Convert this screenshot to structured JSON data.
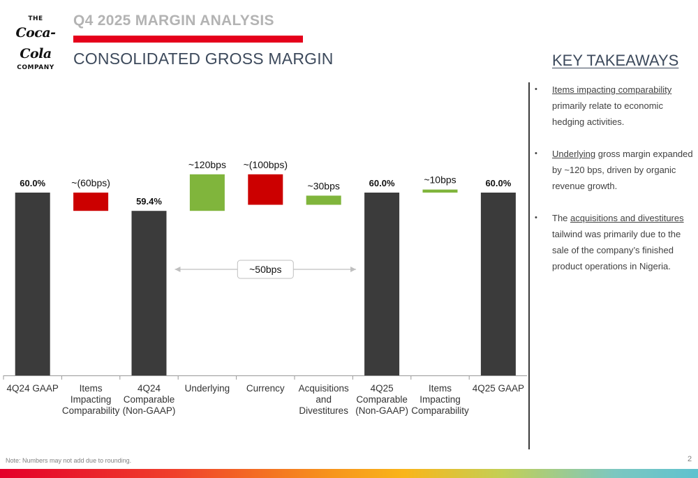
{
  "logo": {
    "top": "THE",
    "script": "Coca-Cola",
    "bottom": "COMPANY"
  },
  "header": {
    "kicker": "Q4 2025 MARGIN ANALYSIS",
    "title": "CONSOLIDATED GROSS MARGIN"
  },
  "colors": {
    "base": "#3b3b3b",
    "increase": "#80b53c",
    "decrease": "#cc0000",
    "brand_red": "#e5001b"
  },
  "chart_data": {
    "type": "waterfall",
    "title": "Consolidated Gross Margin",
    "unit": "%",
    "steps": [
      {
        "label": "4Q24 GAAP",
        "kind": "total",
        "value": 60.0,
        "display": "60.0%"
      },
      {
        "label": "Items Impacting Comparability",
        "kind": "decrease",
        "value": -0.6,
        "display": "~(60bps)"
      },
      {
        "label": "4Q24 Comparable (Non-GAAP)",
        "kind": "total",
        "value": 59.4,
        "display": "59.4%"
      },
      {
        "label": "Underlying",
        "kind": "increase",
        "value": 1.2,
        "display": "~120bps"
      },
      {
        "label": "Currency",
        "kind": "decrease",
        "value": -1.0,
        "display": "~(100bps)"
      },
      {
        "label": "Acquisitions and Divestitures",
        "kind": "increase",
        "value": 0.3,
        "display": "~30bps"
      },
      {
        "label": "4Q25 Comparable (Non-GAAP)",
        "kind": "total",
        "value": 60.0,
        "display": "60.0%"
      },
      {
        "label": "Items Impacting Comparability",
        "kind": "increase",
        "value": 0.1,
        "display": "~10bps"
      },
      {
        "label": "4Q25 GAAP",
        "kind": "total",
        "value": 60.0,
        "display": "60.0%"
      }
    ],
    "annotation": {
      "text": "~50bps",
      "from_step": 2,
      "to_step": 6
    }
  },
  "takeaways": {
    "title": "KEY TAKEAWAYS",
    "items": [
      {
        "pre": "",
        "link": "Items impacting comparability",
        "post": " primarily relate to economic hedging activities."
      },
      {
        "pre": "",
        "link": "Underlying",
        "post": " gross margin expanded by ~120 bps, driven by organic revenue growth."
      },
      {
        "pre": "The ",
        "link": "acquisitions and divestitures",
        "post": " tailwind was primarily due to the sale of the company’s finished product operations in Nigeria."
      }
    ]
  },
  "footer": {
    "note": "Note: Numbers may not add due to rounding.",
    "page": "2"
  }
}
